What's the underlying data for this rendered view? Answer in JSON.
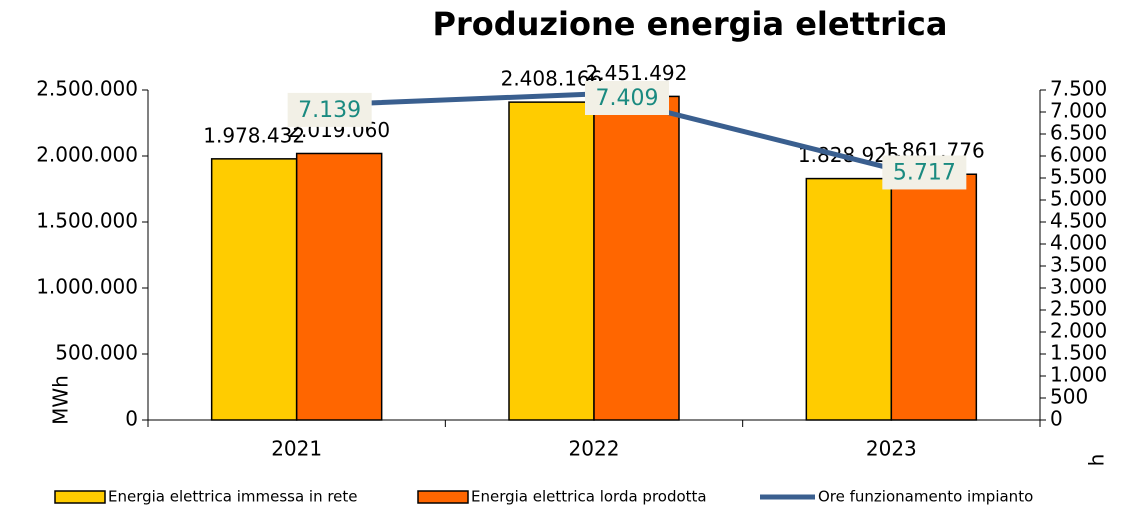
{
  "chart_data": {
    "type": "bar",
    "title": "Produzione energia elettrica",
    "categories": [
      "2021",
      "2022",
      "2023"
    ],
    "ylabel": "MWh",
    "y2label": "h",
    "ylim": [
      0,
      2500000
    ],
    "yticks": [
      0,
      {
        "value": 500000,
        "label": "500.000"
      },
      {
        "value": 1000000,
        "label": "1.000.000"
      },
      {
        "value": 1500000,
        "label": "1.500.000"
      },
      {
        "value": 2000000,
        "label": "2.000.000"
      },
      {
        "value": 2500000,
        "label": "2.500.000"
      }
    ],
    "y2lim": [
      0,
      7500
    ],
    "y2ticks": [
      0,
      500,
      {
        "value": 1000,
        "label": "1.000"
      },
      {
        "value": 1500,
        "label": "1.500"
      },
      {
        "value": 2000,
        "label": "2.000"
      },
      {
        "value": 2500,
        "label": "2.500"
      },
      {
        "value": 3000,
        "label": "3.000"
      },
      {
        "value": 3500,
        "label": "3.500"
      },
      {
        "value": 4000,
        "label": "4.000"
      },
      {
        "value": 4500,
        "label": "4.500"
      },
      {
        "value": 5000,
        "label": "5.000"
      },
      {
        "value": 5500,
        "label": "5.500"
      },
      {
        "value": 6000,
        "label": "6.000"
      },
      {
        "value": 6500,
        "label": "6.500"
      },
      {
        "value": 7000,
        "label": "7.000"
      },
      {
        "value": 7500,
        "label": "7.500"
      }
    ],
    "series": [
      {
        "name": "Energia elettrica immessa in rete",
        "type": "bar",
        "color": "#FFCC00",
        "values": [
          1978432,
          2408166,
          1828925
        ],
        "value_labels": [
          "1.978.432",
          "2.408.166",
          "1.828.925"
        ]
      },
      {
        "name": "Energia elettrica lorda prodotta",
        "type": "bar",
        "color": "#FF6600",
        "values": [
          2019060,
          2451492,
          1861776
        ],
        "value_labels": [
          "2.019.060",
          "2.451.492",
          "1.861.776"
        ]
      },
      {
        "name": "Ore funzionamento impianto",
        "type": "line",
        "axis": "y2",
        "color": "#3A5F8F",
        "values": [
          7139,
          7409,
          5717
        ],
        "value_labels": [
          "7.139",
          "7.409",
          "5.717"
        ]
      }
    ]
  }
}
